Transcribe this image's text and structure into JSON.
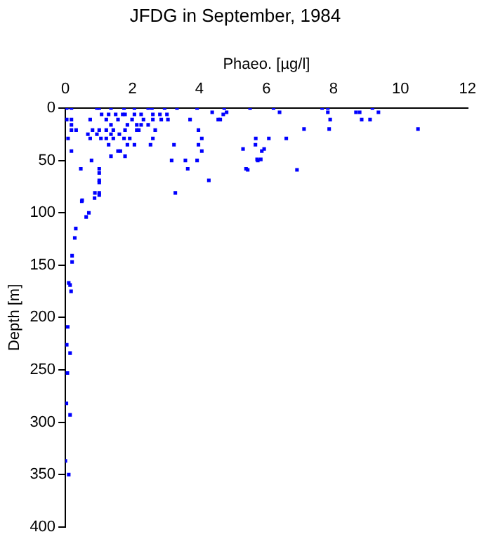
{
  "chart_data": {
    "type": "scatter",
    "title": "JFDG in September, 1984",
    "xlabel": "Phaeo. [µg/l]",
    "ylabel": "Depth [m]",
    "xlim": [
      0,
      12
    ],
    "xticks": [
      0,
      2,
      4,
      6,
      8,
      10,
      12
    ],
    "ylim": [
      400,
      0
    ],
    "yticks": [
      0,
      50,
      100,
      150,
      200,
      250,
      300,
      350,
      400
    ],
    "grid": false,
    "legend": false,
    "marker": "square",
    "series": [
      {
        "color": "#0000ff",
        "x": [
          0.04,
          0.18,
          0.94,
          1.01,
          1.36,
          1.75,
          2.06,
          2.47,
          2.58,
          2.96,
          3.33,
          3.93,
          1.08,
          1.29,
          1.5,
          1.71,
          1.78,
          2.06,
          2.26,
          2.61,
          2.82,
          3.03,
          0.04,
          0.18,
          0.74,
          1.22,
          1.57,
          1.99,
          2.33,
          2.61,
          2.86,
          3.06,
          3.72,
          4.56,
          0.18,
          1.36,
          1.85,
          2.13,
          2.26,
          2.47,
          0.18,
          0.32,
          0.81,
          1.01,
          1.22,
          1.43,
          1.78,
          2.13,
          2.19,
          2.68,
          3.97,
          0.67,
          0.94,
          1.36,
          1.61,
          0.08,
          0.74,
          1.06,
          1.22,
          1.43,
          1.75,
          1.92,
          2.61,
          4.07,
          1.29,
          1.85,
          2.06,
          2.54,
          3.24,
          3.97,
          5.67,
          0.18,
          1.57,
          1.64,
          4.07,
          5.86,
          1.36,
          1.78,
          0.78,
          3.17,
          3.58,
          3.93,
          5.74,
          0.46,
          1.01,
          3.65,
          5.39,
          1.01,
          1.01,
          4.28,
          1.01,
          0.88,
          3.28,
          0.5,
          4.74,
          5.51,
          6.21,
          7.66,
          7.83,
          9.16,
          4.38,
          4.81,
          6.39,
          7.83,
          8.67,
          8.78,
          9.34,
          4.71,
          4.62,
          7.9,
          8.84,
          9.09,
          7.12,
          7.87,
          10.52,
          5.68,
          6.07,
          6.59,
          5.3,
          5.93,
          5.72,
          5.83,
          5.44,
          6.91,
          0.49,
          0.87,
          1.01,
          1.01,
          0.62,
          0.7,
          0.31,
          0.28,
          0.2,
          0.2,
          0.1,
          0.14,
          0.17,
          0.07,
          0.04,
          0.14,
          0.06,
          0.03,
          0.14,
          0,
          0.1
        ],
        "values": [
          0,
          0,
          0,
          0,
          0,
          0,
          0,
          0,
          0,
          0,
          0,
          0,
          6,
          6,
          6,
          6,
          6,
          6,
          6,
          6,
          6,
          6,
          11,
          11,
          11,
          11,
          11,
          11,
          11,
          11,
          11,
          11,
          11,
          11,
          16,
          16,
          16,
          16,
          16,
          16,
          21,
          21,
          21,
          21,
          21,
          21,
          21,
          21,
          21,
          21,
          21,
          25,
          25,
          25,
          25,
          29,
          29,
          29,
          29,
          29,
          29,
          29,
          29,
          29,
          35,
          35,
          35,
          35,
          35,
          35,
          35,
          41,
          41,
          41,
          41,
          41,
          46,
          46,
          50,
          50,
          50,
          50,
          50,
          58,
          58,
          58,
          58,
          62,
          69,
          69,
          81,
          81,
          81,
          88,
          0,
          0,
          0,
          0,
          0,
          0,
          4,
          4,
          4,
          4,
          4,
          4,
          4,
          6,
          11,
          11,
          11,
          11,
          20,
          20,
          20,
          29,
          29,
          29,
          39,
          39,
          49,
          49,
          59,
          59,
          89,
          86,
          83,
          71,
          104,
          100,
          115,
          124,
          141,
          147,
          167,
          169,
          175,
          209,
          226,
          234,
          253,
          282,
          293,
          337,
          350
        ]
      }
    ]
  }
}
